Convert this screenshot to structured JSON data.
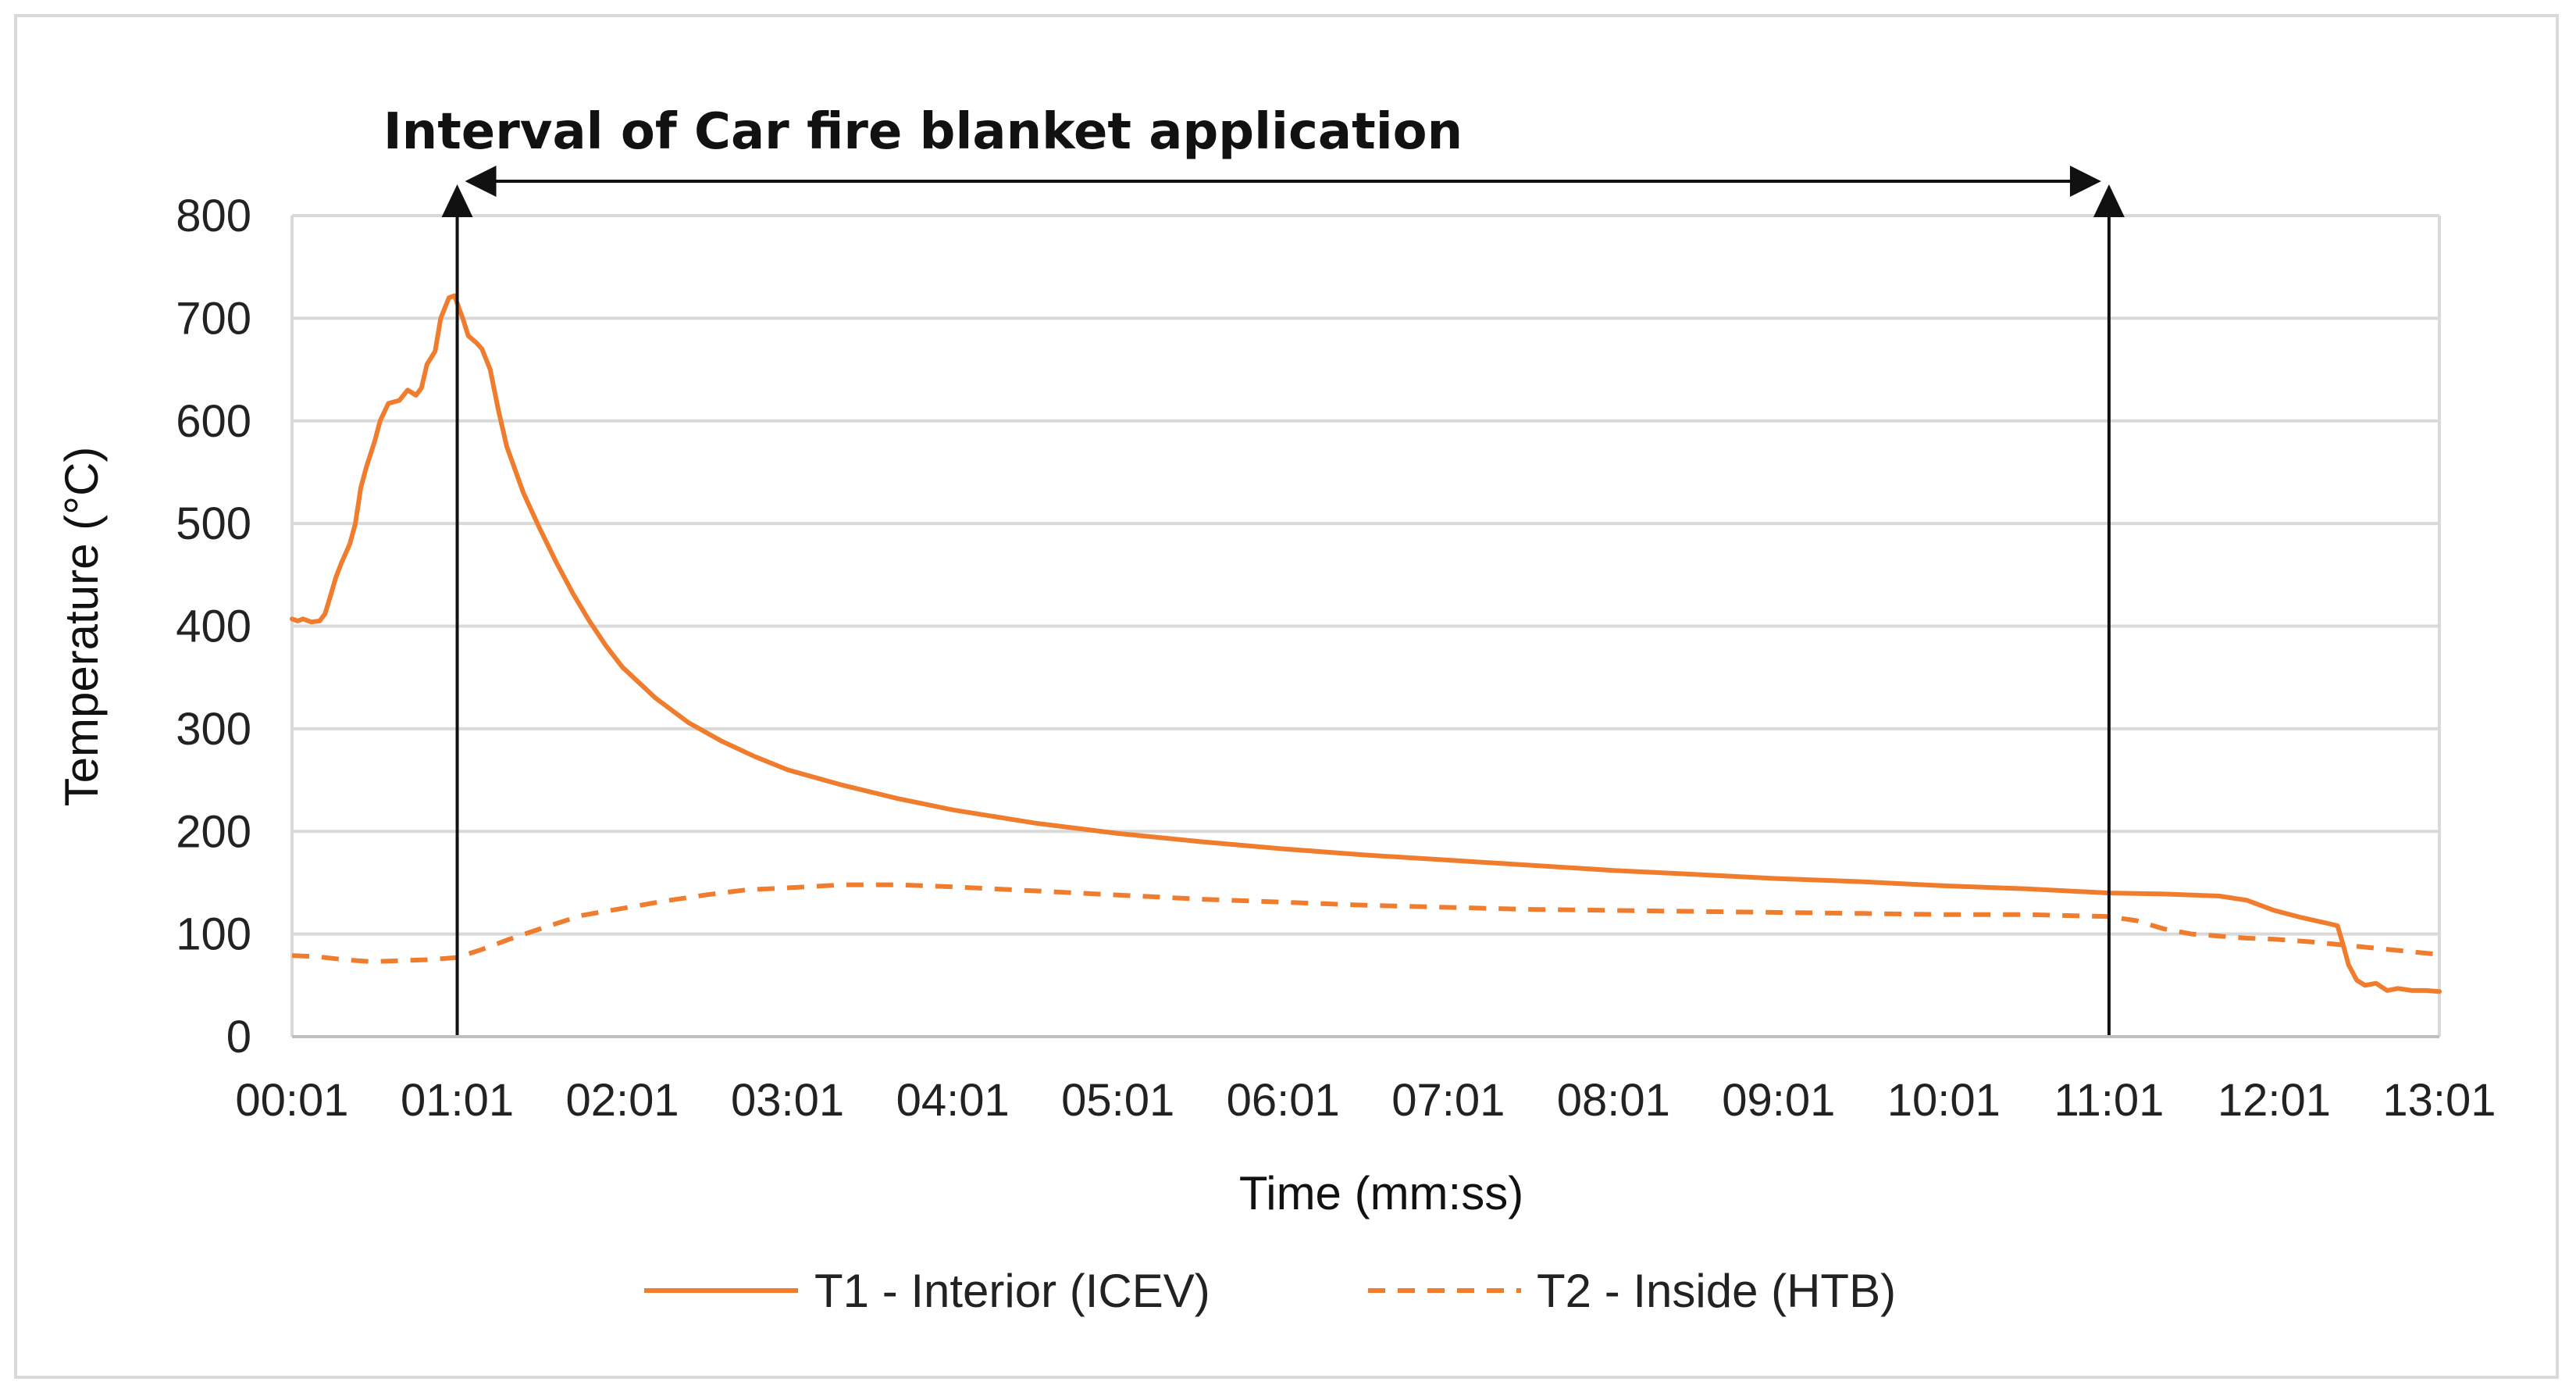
{
  "chart_data": {
    "type": "line",
    "title": "Interval of Car fire blanket application",
    "xlabel": "Time (mm:ss)",
    "ylabel": "Temperature (°C)",
    "x_ticks": [
      "00:01",
      "01:01",
      "02:01",
      "03:01",
      "04:01",
      "05:01",
      "06:01",
      "07:01",
      "08:01",
      "09:01",
      "10:01",
      "11:01",
      "12:01",
      "13:01"
    ],
    "xlim_seconds": [
      1,
      781
    ],
    "ylim": [
      0,
      800
    ],
    "y_ticks": [
      0,
      100,
      200,
      300,
      400,
      500,
      600,
      700,
      800
    ],
    "grid": "horizontal",
    "legend_position": "bottom",
    "annotation": {
      "label": "Interval of Car fire blanket application",
      "start": "01:01",
      "end": "11:01"
    },
    "series": [
      {
        "name": "T1 - Interior (ICEV)",
        "color": "#f07d2d",
        "style": "solid",
        "points": [
          [
            "00:01",
            407
          ],
          [
            "00:03",
            405
          ],
          [
            "00:05",
            407
          ],
          [
            "00:08",
            404
          ],
          [
            "00:11",
            405
          ],
          [
            "00:13",
            412
          ],
          [
            "00:15",
            430
          ],
          [
            "00:17",
            448
          ],
          [
            "00:19",
            462
          ],
          [
            "00:22",
            480
          ],
          [
            "00:24",
            500
          ],
          [
            "00:26",
            535
          ],
          [
            "00:28",
            555
          ],
          [
            "00:31",
            580
          ],
          [
            "00:33",
            600
          ],
          [
            "00:36",
            617
          ],
          [
            "00:40",
            620
          ],
          [
            "00:43",
            630
          ],
          [
            "00:46",
            625
          ],
          [
            "00:48",
            632
          ],
          [
            "00:50",
            655
          ],
          [
            "00:53",
            668
          ],
          [
            "00:55",
            700
          ],
          [
            "00:58",
            720
          ],
          [
            "01:00",
            722
          ],
          [
            "01:03",
            700
          ],
          [
            "01:05",
            683
          ],
          [
            "01:08",
            676
          ],
          [
            "01:10",
            670
          ],
          [
            "01:13",
            650
          ],
          [
            "01:16",
            610
          ],
          [
            "01:19",
            575
          ],
          [
            "01:25",
            530
          ],
          [
            "01:31",
            495
          ],
          [
            "01:37",
            462
          ],
          [
            "01:43",
            432
          ],
          [
            "01:49",
            405
          ],
          [
            "01:55",
            381
          ],
          [
            "02:01",
            360
          ],
          [
            "02:13",
            330
          ],
          [
            "02:25",
            306
          ],
          [
            "02:37",
            288
          ],
          [
            "02:49",
            273
          ],
          [
            "03:01",
            260
          ],
          [
            "03:21",
            245
          ],
          [
            "03:41",
            232
          ],
          [
            "04:01",
            221
          ],
          [
            "04:31",
            208
          ],
          [
            "05:01",
            198
          ],
          [
            "05:31",
            190
          ],
          [
            "06:01",
            183
          ],
          [
            "06:31",
            177
          ],
          [
            "07:01",
            172
          ],
          [
            "07:31",
            167
          ],
          [
            "08:01",
            162
          ],
          [
            "08:31",
            158
          ],
          [
            "09:01",
            154
          ],
          [
            "09:31",
            151
          ],
          [
            "10:01",
            147
          ],
          [
            "10:31",
            144
          ],
          [
            "11:01",
            140
          ],
          [
            "11:21",
            139
          ],
          [
            "11:41",
            137
          ],
          [
            "11:51",
            133
          ],
          [
            "12:01",
            123
          ],
          [
            "12:11",
            116
          ],
          [
            "12:21",
            110
          ],
          [
            "12:24",
            108
          ],
          [
            "12:26",
            90
          ],
          [
            "12:28",
            70
          ],
          [
            "12:31",
            55
          ],
          [
            "12:34",
            50
          ],
          [
            "12:38",
            52
          ],
          [
            "12:42",
            45
          ],
          [
            "12:46",
            47
          ],
          [
            "12:51",
            45
          ],
          [
            "12:56",
            45
          ],
          [
            "13:01",
            44
          ]
        ]
      },
      {
        "name": "T2 - Inside (HTB)",
        "color": "#f07d2d",
        "style": "dashed",
        "points": [
          [
            "00:01",
            79
          ],
          [
            "00:10",
            78
          ],
          [
            "00:20",
            75
          ],
          [
            "00:30",
            73
          ],
          [
            "00:40",
            74
          ],
          [
            "00:50",
            75
          ],
          [
            "01:01",
            77
          ],
          [
            "01:10",
            85
          ],
          [
            "01:20",
            95
          ],
          [
            "01:31",
            105
          ],
          [
            "01:46",
            118
          ],
          [
            "02:01",
            125
          ],
          [
            "02:16",
            132
          ],
          [
            "02:31",
            138
          ],
          [
            "02:46",
            143
          ],
          [
            "03:01",
            145
          ],
          [
            "03:21",
            148
          ],
          [
            "03:41",
            148
          ],
          [
            "04:01",
            146
          ],
          [
            "04:31",
            142
          ],
          [
            "05:01",
            138
          ],
          [
            "05:31",
            134
          ],
          [
            "06:01",
            131
          ],
          [
            "06:31",
            128
          ],
          [
            "07:01",
            126
          ],
          [
            "07:31",
            124
          ],
          [
            "08:01",
            123
          ],
          [
            "08:31",
            122
          ],
          [
            "09:01",
            121
          ],
          [
            "09:31",
            120
          ],
          [
            "10:01",
            119
          ],
          [
            "10:31",
            119
          ],
          [
            "11:01",
            117
          ],
          [
            "11:11",
            113
          ],
          [
            "11:21",
            105
          ],
          [
            "11:31",
            100
          ],
          [
            "11:41",
            98
          ],
          [
            "11:51",
            96
          ],
          [
            "12:01",
            95
          ],
          [
            "12:16",
            92
          ],
          [
            "12:31",
            88
          ],
          [
            "12:46",
            84
          ],
          [
            "13:01",
            80
          ]
        ]
      }
    ]
  }
}
